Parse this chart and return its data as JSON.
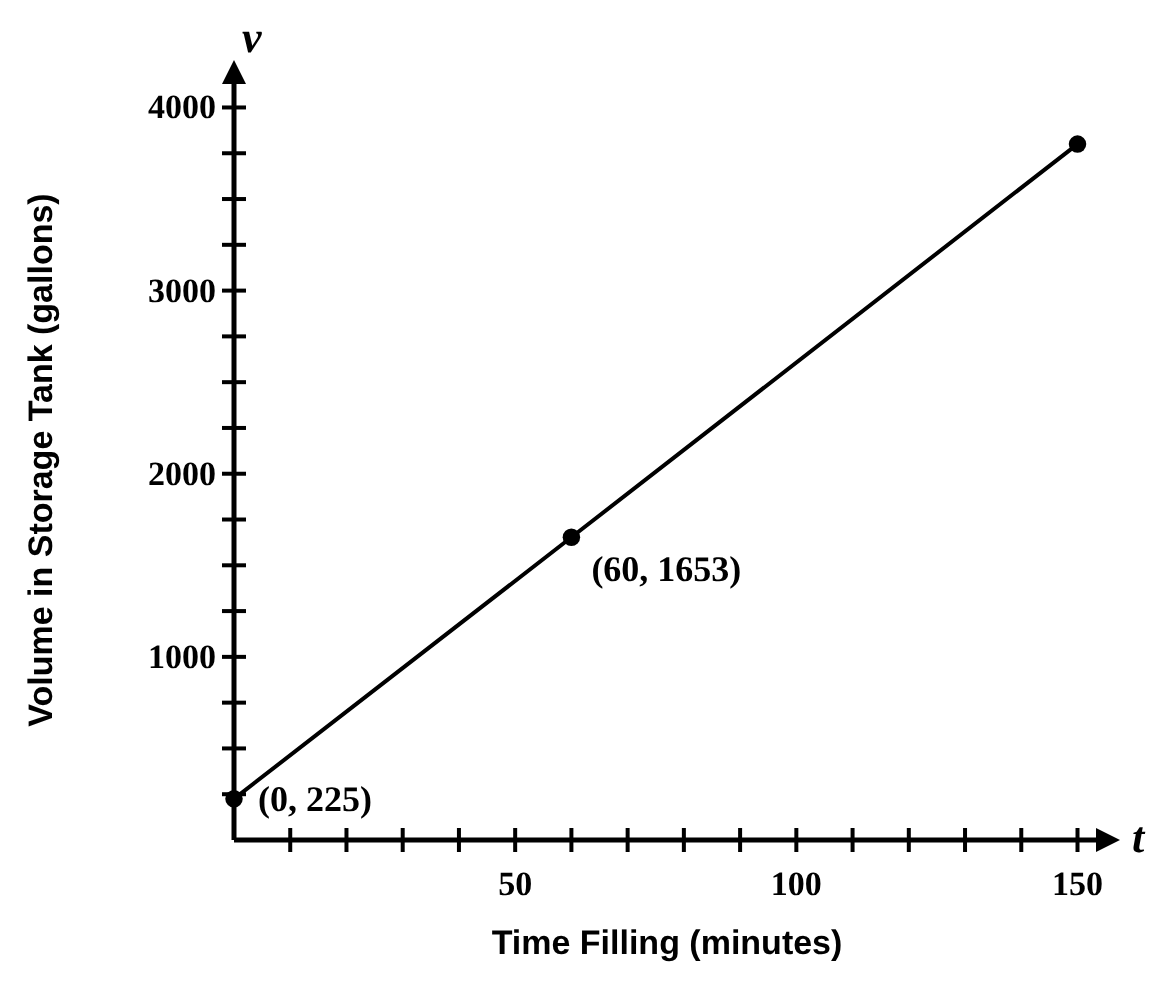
{
  "chart_data": {
    "type": "line",
    "xlabel": "Time Filling (minutes)",
    "ylabel": "Volume in Storage Tank (gallons)",
    "x": [
      0,
      60,
      150
    ],
    "series": [
      {
        "color": "#000000",
        "values": [
          225,
          1653,
          3800
        ]
      }
    ],
    "xlim": [
      0,
      154
    ],
    "ylim": [
      0,
      4150
    ],
    "xticks": [
      {
        "value": 10,
        "label": null
      },
      {
        "value": 20,
        "label": null
      },
      {
        "value": 30,
        "label": null
      },
      {
        "value": 40,
        "label": null
      },
      50,
      {
        "value": 60,
        "label": null
      },
      {
        "value": 70,
        "label": null
      },
      {
        "value": 80,
        "label": null
      },
      {
        "value": 90,
        "label": null
      },
      100,
      {
        "value": 110,
        "label": null
      },
      {
        "value": 120,
        "label": null
      },
      {
        "value": 130,
        "label": null
      },
      {
        "value": 140,
        "label": null
      },
      150
    ],
    "yticks": [
      {
        "value": 250,
        "label": null
      },
      {
        "value": 500,
        "label": null
      },
      {
        "value": 750,
        "label": null
      },
      1000,
      {
        "value": 1250,
        "label": null
      },
      {
        "value": 1500,
        "label": null
      },
      {
        "value": 1750,
        "label": null
      },
      2000,
      {
        "value": 2250,
        "label": null
      },
      {
        "value": 2500,
        "label": null
      },
      {
        "value": 2750,
        "label": null
      },
      3000,
      {
        "value": 3250,
        "label": null
      },
      {
        "value": 3500,
        "label": null
      },
      {
        "value": 3750,
        "label": null
      },
      4000
    ],
    "annotations": [
      {
        "text": "(0, 225)",
        "x": 0,
        "y": 225
      },
      {
        "text": "(60, 1653)",
        "x": 60,
        "y": 1653
      },
      "v",
      "t"
    ],
    "marker": "circle",
    "line_style": "solid",
    "grid": false
  }
}
